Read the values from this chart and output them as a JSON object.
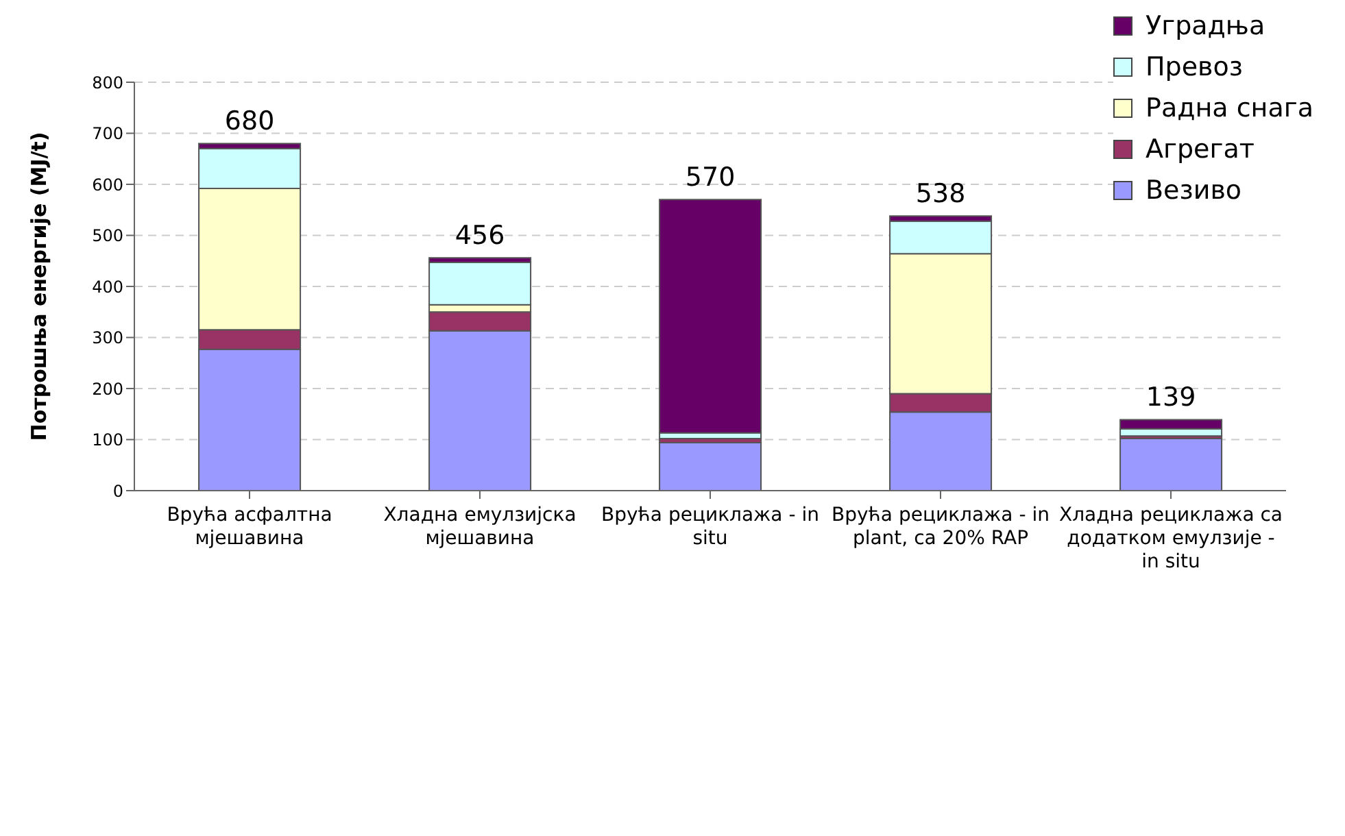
{
  "chart_data": {
    "type": "bar",
    "stacked": true,
    "ylabel": "Потрошња енергије (MJ/t)",
    "categories": [
      "Врућа асфалтна мјешавина",
      "Хладна емулзијска мјешавина",
      "Врућа рециклажа - in situ",
      "Врућа рециклажа - in plant, са 20% RAP",
      "Хладна рециклажа са додатком емулзије - in situ"
    ],
    "series": [
      {
        "name": "Везиво",
        "color": "#9999ff",
        "values": [
          277,
          313,
          94,
          154,
          102
        ]
      },
      {
        "name": "Агрегат",
        "color": "#993366",
        "values": [
          38,
          37,
          8,
          36,
          5
        ]
      },
      {
        "name": "Радна снага",
        "color": "#ffffcc",
        "values": [
          277,
          14,
          0,
          274,
          0
        ]
      },
      {
        "name": "Превоз",
        "color": "#ccffff",
        "values": [
          78,
          83,
          11,
          64,
          14
        ]
      },
      {
        "name": "Уградња",
        "color": "#660066",
        "values": [
          10,
          9,
          457,
          10,
          18
        ]
      }
    ],
    "totals": [
      "680",
      "456",
      "570",
      "538",
      "139"
    ],
    "ylim": [
      0,
      800
    ],
    "yticks": [
      0,
      100,
      200,
      300,
      400,
      500,
      600,
      700,
      800
    ],
    "grid": "y",
    "legend": "top right"
  }
}
